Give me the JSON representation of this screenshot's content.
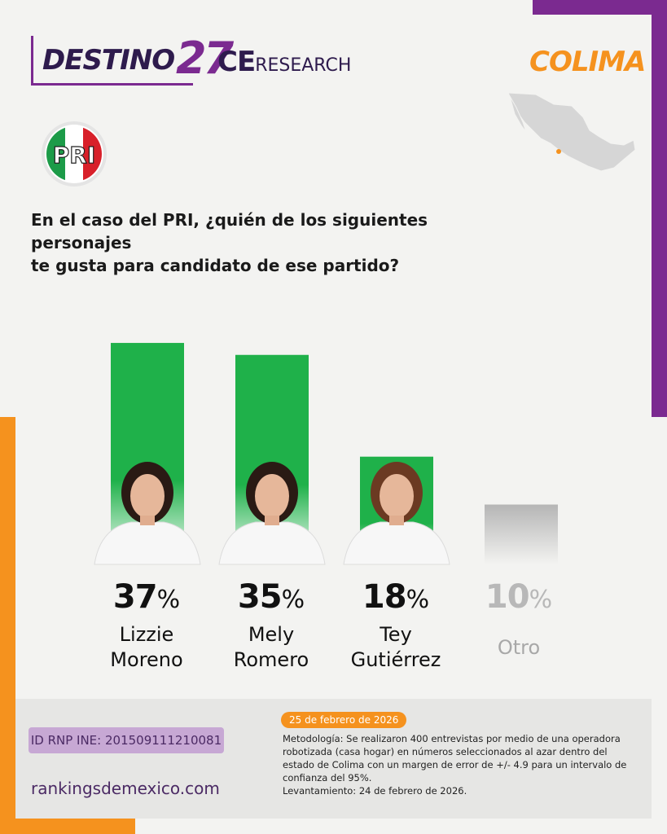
{
  "brand": {
    "destino_word": "DESTINO",
    "destino_num": "27",
    "ce": "CE",
    "research": "RESEARCH"
  },
  "state": "COLIMA",
  "party_logo_text": "PRI",
  "question_line1": "En el caso del PRI, ¿quién de los siguientes personajes",
  "question_line2": "te gusta para candidato de ese partido?",
  "chart_data": {
    "type": "bar",
    "categories": [
      "Lizzie Moreno",
      "Mely Romero",
      "Tey Gutiérrez",
      "Otro"
    ],
    "values": [
      37,
      35,
      18,
      10
    ],
    "unit": "%",
    "colors": [
      "#1fb14a",
      "#1fb14a",
      "#1fb14a",
      "#b5b5b5"
    ],
    "ylim": [
      0,
      40
    ],
    "data_labels": [
      {
        "value": "37",
        "suffix": "%",
        "name_line1": "Lizzie",
        "name_line2": "Moreno"
      },
      {
        "value": "35",
        "suffix": "%",
        "name_line1": "Mely",
        "name_line2": "Romero"
      },
      {
        "value": "18",
        "suffix": "%",
        "name_line1": "Tey",
        "name_line2": "Gutiérrez"
      },
      {
        "value": "10",
        "suffix": "%",
        "name_line1": "Otro",
        "name_line2": ""
      }
    ]
  },
  "footer": {
    "rnp": "ID RNP INE: 201509111210081",
    "website": "rankingsdemexico.com",
    "date": "25 de febrero de 2026",
    "methodology": "Metodología: Se realizaron 400 entrevistas por medio de una operadora robotizada (casa hogar) en números seleccionados al azar dentro del estado de Colima con un margen de error de +/- 4.9 para un intervalo de confianza del 95%.",
    "fieldwork": "Levantamiento: 24 de febrero de 2026."
  },
  "colors": {
    "purple": "#7b2a90",
    "orange": "#f5921e",
    "green": "#1fb14a",
    "grey": "#b5b5b5"
  }
}
